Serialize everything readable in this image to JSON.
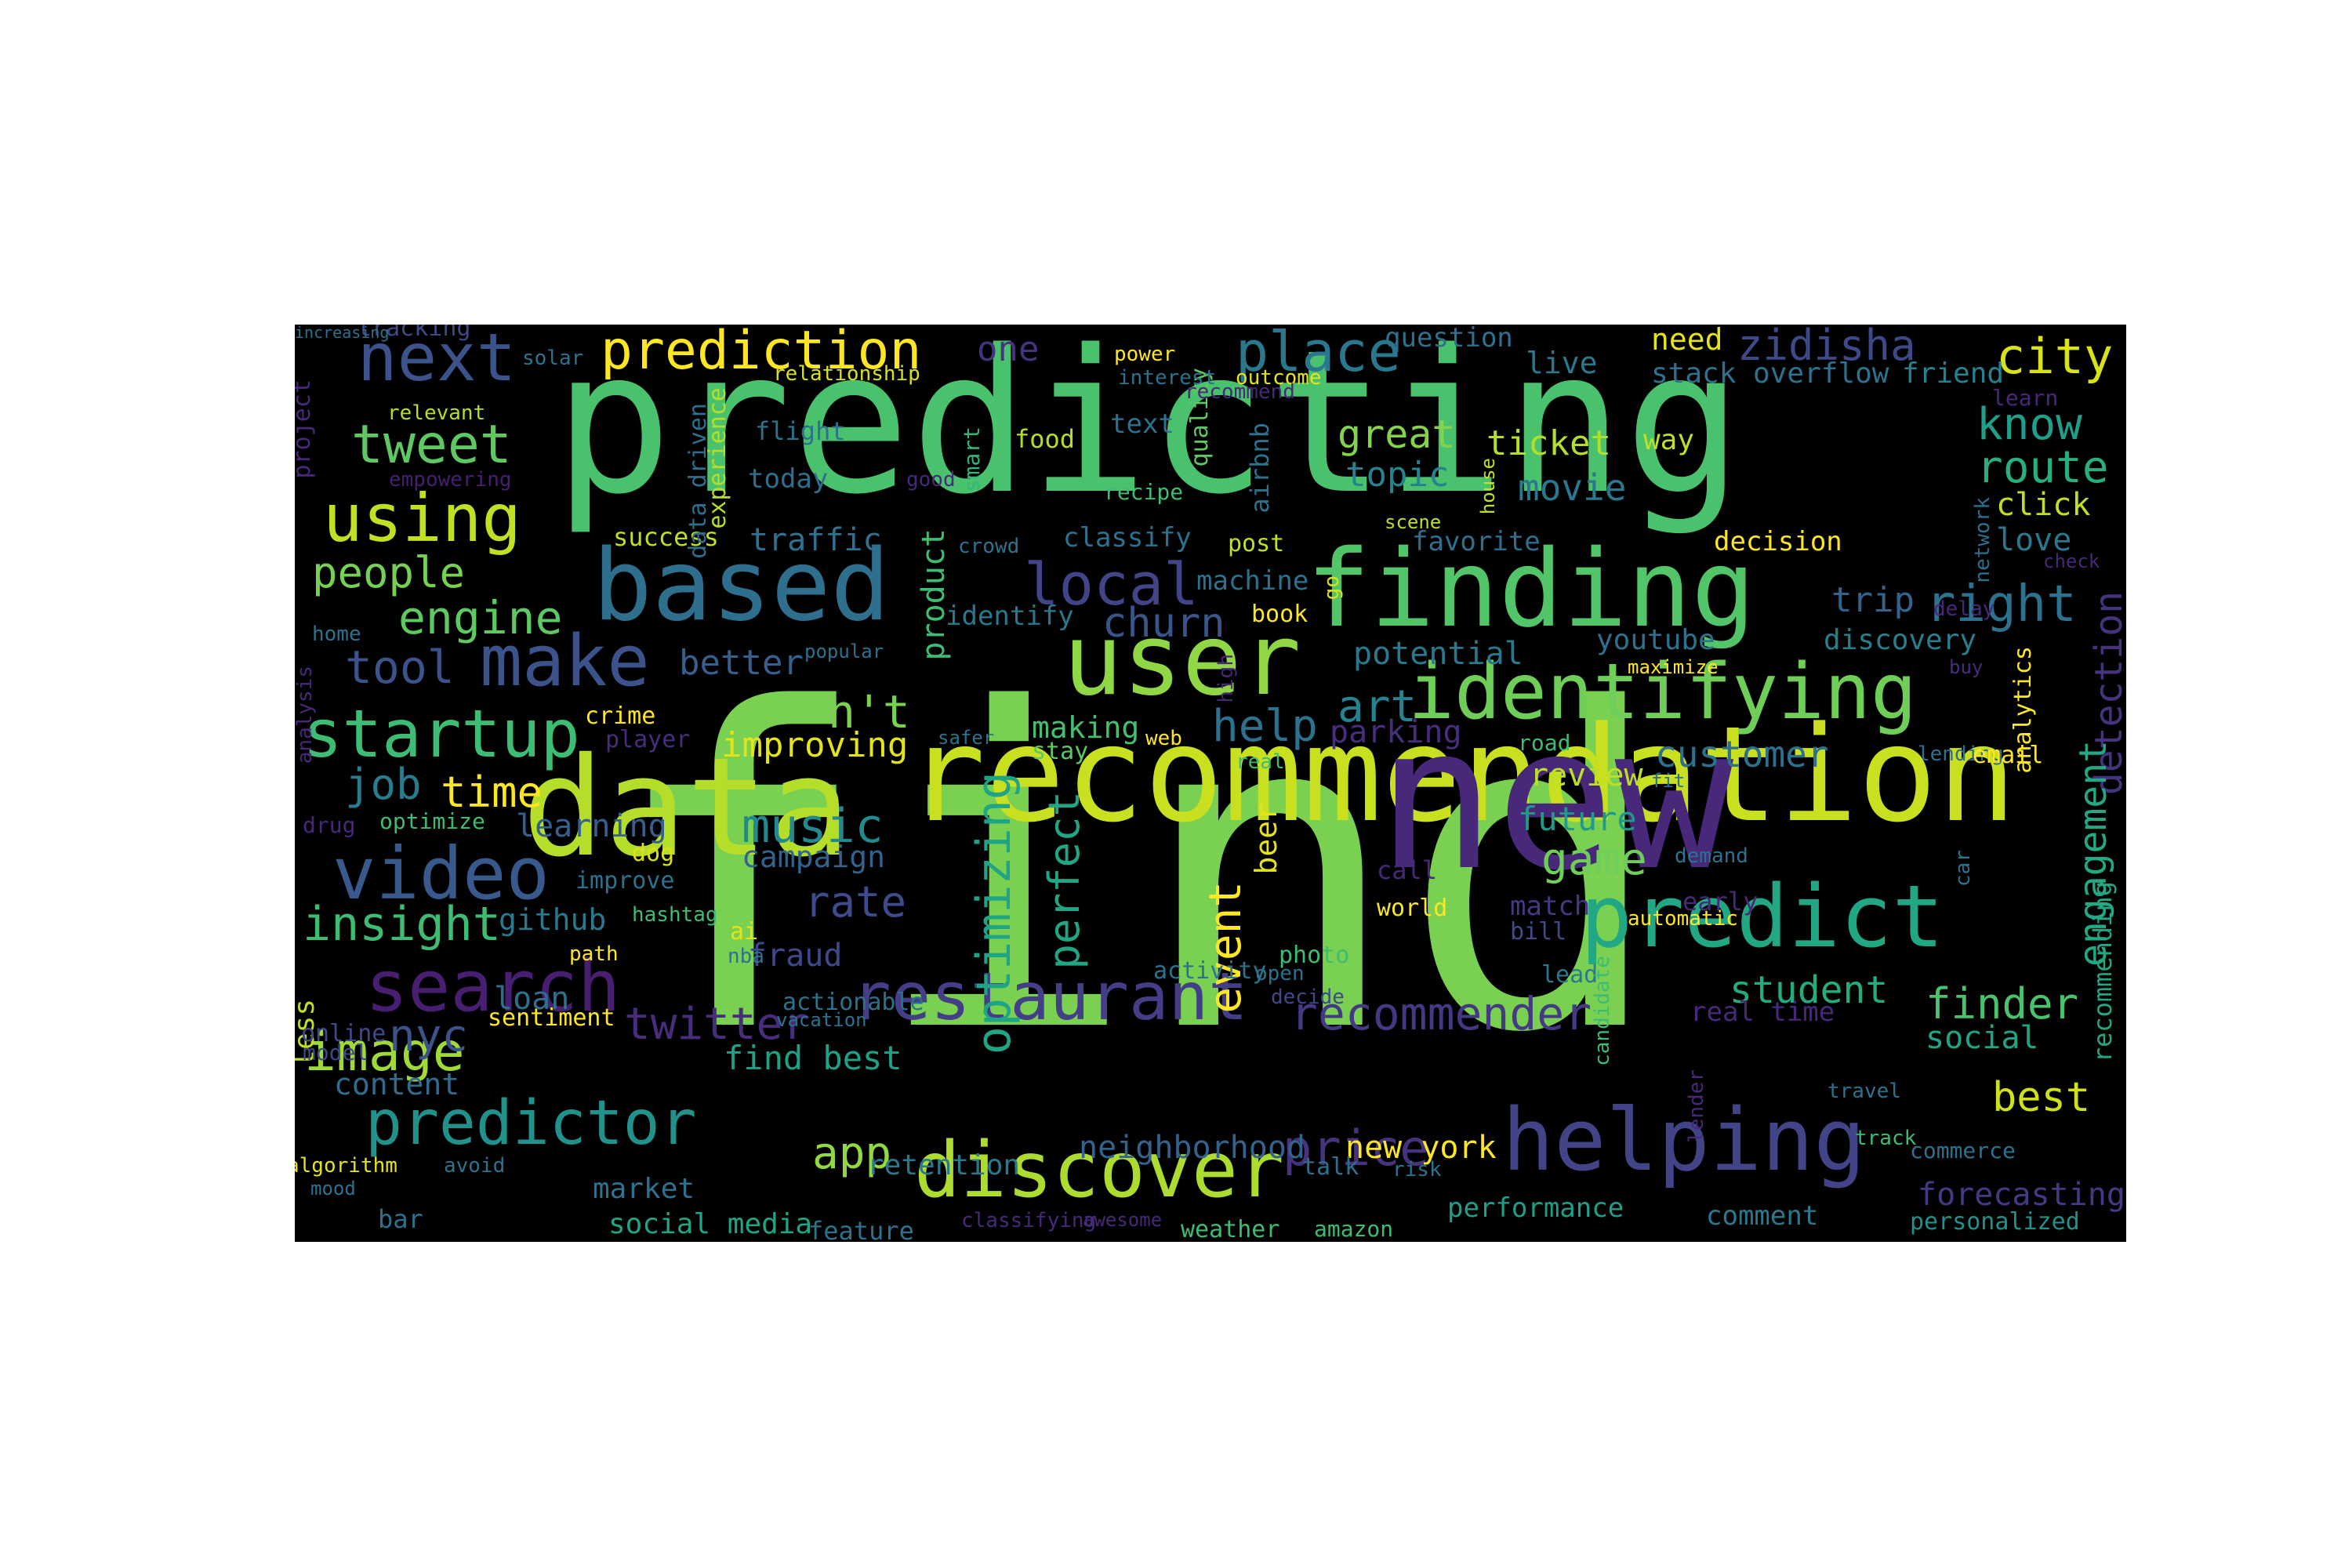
{
  "colors": {
    "background": "#000000",
    "page": "#ffffff",
    "palette": [
      "#440154",
      "#482878",
      "#3e4989",
      "#31688e",
      "#26828e",
      "#1f9e89",
      "#35b779",
      "#6ece58",
      "#b5de2b",
      "#fde725"
    ]
  },
  "words": [
    {
      "text": "find",
      "color": "#7ad151"
    },
    {
      "text": "predicting",
      "color": "#4ac16d"
    },
    {
      "text": "recommendation",
      "color": "#c8e020"
    },
    {
      "text": "new",
      "color": "#482878"
    },
    {
      "text": "data",
      "color": "#b5de2b"
    },
    {
      "text": "finding",
      "color": "#52c569"
    },
    {
      "text": "based",
      "color": "#2e6f8e"
    },
    {
      "text": "user",
      "color": "#8fd744"
    },
    {
      "text": "predict",
      "color": "#22a785"
    },
    {
      "text": "identifying",
      "color": "#6ece58"
    },
    {
      "text": "helping",
      "color": "#414487"
    },
    {
      "text": "discover",
      "color": "#addc30"
    },
    {
      "text": "search",
      "color": "#481f70"
    },
    {
      "text": "restaurant",
      "color": "#433e85"
    },
    {
      "text": "video",
      "color": "#38598c"
    },
    {
      "text": "startup",
      "color": "#3dbc74"
    },
    {
      "text": "make",
      "color": "#3b528b"
    },
    {
      "text": "predictor",
      "color": "#21918c"
    },
    {
      "text": "using",
      "color": "#c2df23"
    },
    {
      "text": "next",
      "color": "#3b528b"
    },
    {
      "text": "prediction",
      "color": "#fde725"
    },
    {
      "text": "tweet",
      "color": "#5ec962"
    },
    {
      "text": "local",
      "color": "#414487"
    },
    {
      "text": "place",
      "color": "#2a788e"
    },
    {
      "text": "optimizing",
      "color": "#20a486"
    },
    {
      "text": "people",
      "color": "#75d054"
    },
    {
      "text": "engine",
      "color": "#5ec962"
    },
    {
      "text": "tool",
      "color": "#3b528b"
    },
    {
      "text": "image",
      "color": "#a0da39"
    },
    {
      "text": "insight",
      "color": "#3fbc73"
    },
    {
      "text": "job",
      "color": "#287c8e"
    },
    {
      "text": "time",
      "color": "#fde725"
    },
    {
      "text": "music",
      "color": "#23898e"
    },
    {
      "text": "churn",
      "color": "#39568c"
    },
    {
      "text": "right",
      "color": "#2c728e"
    },
    {
      "text": "city",
      "color": "#d8e219"
    },
    {
      "text": "know",
      "color": "#1f9e89"
    },
    {
      "text": "route",
      "color": "#29af7f"
    },
    {
      "text": "finder",
      "color": "#4ac16d"
    },
    {
      "text": "best",
      "color": "#d0e11c"
    },
    {
      "text": "price",
      "color": "#46337e"
    },
    {
      "text": "app",
      "color": "#93d741"
    },
    {
      "text": "art",
      "color": "#26828e"
    },
    {
      "text": "help",
      "color": "#2c728e"
    },
    {
      "text": "n't",
      "color": "#7ad151"
    },
    {
      "text": "rate",
      "color": "#3e4a89"
    },
    {
      "text": "perfect",
      "color": "#21a685"
    },
    {
      "text": "event",
      "color": "#fde725"
    },
    {
      "text": "game",
      "color": "#6ece58"
    },
    {
      "text": "nyc",
      "color": "#3b528b"
    },
    {
      "text": "twitter",
      "color": "#472d7b"
    },
    {
      "text": "recommender",
      "color": "#443a83"
    },
    {
      "text": "student",
      "color": "#25ab82"
    },
    {
      "text": "customer",
      "color": "#2d708e"
    },
    {
      "text": "zidisha",
      "color": "#3e4989"
    },
    {
      "text": "detection",
      "color": "#46337e"
    },
    {
      "text": "engagement",
      "color": "#22a884"
    },
    {
      "text": "great",
      "color": "#84d44b"
    },
    {
      "text": "ticket",
      "color": "#b5de2b"
    },
    {
      "text": "movie",
      "color": "#2a788e"
    },
    {
      "text": "topic",
      "color": "#26828e"
    },
    {
      "text": "trip",
      "color": "#33638d"
    },
    {
      "text": "content",
      "color": "#2f6c8e"
    },
    {
      "text": "improving",
      "color": "#e5e419"
    },
    {
      "text": "better",
      "color": "#355f8d"
    },
    {
      "text": "traffic",
      "color": "#2c728e"
    },
    {
      "text": "learning",
      "color": "#355f8d"
    },
    {
      "text": "campaign",
      "color": "#33638d"
    },
    {
      "text": "fraud",
      "color": "#3e4989"
    },
    {
      "text": "github",
      "color": "#2a788e"
    },
    {
      "text": "loan",
      "color": "#2d708e"
    },
    {
      "text": "find best",
      "color": "#1fa188"
    },
    {
      "text": "social media",
      "color": "#20a486"
    },
    {
      "text": "neighborhood",
      "color": "#33638d"
    },
    {
      "text": "new york",
      "color": "#fde725"
    },
    {
      "text": "stack overflow",
      "color": "#2c728e"
    },
    {
      "text": "friend",
      "color": "#26828e"
    },
    {
      "text": "need",
      "color": "#e5e419"
    },
    {
      "text": "live",
      "color": "#2a788e"
    },
    {
      "text": "way",
      "color": "#c2df23"
    },
    {
      "text": "click",
      "color": "#bddf26"
    },
    {
      "text": "love",
      "color": "#2a788e"
    },
    {
      "text": "forecasting",
      "color": "#443983"
    },
    {
      "text": "social",
      "color": "#20a486"
    },
    {
      "text": "potential",
      "color": "#2a788e"
    },
    {
      "text": "parking",
      "color": "#472d7b"
    },
    {
      "text": "review",
      "color": "#bddf26"
    },
    {
      "text": "future",
      "color": "#1f9a8a"
    },
    {
      "text": "discovery",
      "color": "#277f8e"
    },
    {
      "text": "youtube",
      "color": "#2c728e"
    },
    {
      "text": "decision",
      "color": "#fde725"
    },
    {
      "text": "favorite",
      "color": "#2e6e8e"
    },
    {
      "text": "one",
      "color": "#46337e"
    },
    {
      "text": "question",
      "color": "#2c728e"
    },
    {
      "text": "making",
      "color": "#44bf70"
    },
    {
      "text": "comment",
      "color": "#2a788e"
    },
    {
      "text": "performance",
      "color": "#1f9e89"
    },
    {
      "text": "weather",
      "color": "#3fbc73"
    },
    {
      "text": "feature",
      "color": "#2c728e"
    },
    {
      "text": "market",
      "color": "#2c728e"
    },
    {
      "text": "retention",
      "color": "#2a788e"
    },
    {
      "text": "less",
      "color": "#bddf26"
    },
    {
      "text": "online",
      "color": "#3e4a89"
    },
    {
      "text": "model",
      "color": "#3e4a89"
    },
    {
      "text": "product",
      "color": "#3fbc73"
    },
    {
      "text": "identify",
      "color": "#2a788e"
    },
    {
      "text": "real time",
      "color": "#482878"
    },
    {
      "text": "recommending",
      "color": "#22a785"
    },
    {
      "text": "personalized",
      "color": "#21918c"
    },
    {
      "text": "beer",
      "color": "#e5e419"
    },
    {
      "text": "match",
      "color": "#443983"
    },
    {
      "text": "bill",
      "color": "#3e4a89"
    },
    {
      "text": "lead",
      "color": "#2a788e"
    },
    {
      "text": "text",
      "color": "#2c728e"
    },
    {
      "text": "food",
      "color": "#b5de2b"
    },
    {
      "text": "flight",
      "color": "#2c728e"
    },
    {
      "text": "today",
      "color": "#2d708e"
    },
    {
      "text": "success",
      "color": "#bddf26"
    },
    {
      "text": "airbnb",
      "color": "#2c728e"
    },
    {
      "text": "quality",
      "color": "#5ec962"
    },
    {
      "text": "machine",
      "color": "#2c728e"
    },
    {
      "text": "book",
      "color": "#fde725"
    },
    {
      "text": "stay",
      "color": "#5ec962"
    },
    {
      "text": "crime",
      "color": "#fde725"
    },
    {
      "text": "player",
      "color": "#472d7b"
    },
    {
      "text": "dog",
      "color": "#d8e219"
    },
    {
      "text": "improve",
      "color": "#2c728e"
    },
    {
      "text": "optimize",
      "color": "#3fbc73"
    },
    {
      "text": "drug",
      "color": "#482878"
    },
    {
      "text": "project",
      "color": "#482878"
    },
    {
      "text": "relevant",
      "color": "#b5de2b"
    },
    {
      "text": "empowering",
      "color": "#481f70"
    },
    {
      "text": "tracking",
      "color": "#3e4989"
    },
    {
      "text": "solar",
      "color": "#2c728e"
    },
    {
      "text": "relationship",
      "color": "#d8e219"
    },
    {
      "text": "experience",
      "color": "#b5de2b"
    },
    {
      "text": "data driven",
      "color": "#2d708e"
    },
    {
      "text": "smart",
      "color": "#35b779"
    },
    {
      "text": "good",
      "color": "#482878"
    },
    {
      "text": "power",
      "color": "#fde725"
    },
    {
      "text": "interest",
      "color": "#2c728e"
    },
    {
      "text": "outcome",
      "color": "#e5e419"
    },
    {
      "text": "recommend",
      "color": "#482878"
    },
    {
      "text": "recipe",
      "color": "#3fbc73"
    },
    {
      "text": "classify",
      "color": "#2c728e"
    },
    {
      "text": "post",
      "color": "#c2df23"
    },
    {
      "text": "crowd",
      "color": "#2c728e"
    },
    {
      "text": "scene",
      "color": "#bddf26"
    },
    {
      "text": "house",
      "color": "#c2df23"
    },
    {
      "text": "learn",
      "color": "#482878"
    },
    {
      "text": "network",
      "color": "#2d708e"
    },
    {
      "text": "check",
      "color": "#482878"
    },
    {
      "text": "delay",
      "color": "#482878"
    },
    {
      "text": "go",
      "color": "#d8e219"
    },
    {
      "text": "home",
      "color": "#2c728e"
    },
    {
      "text": "popular",
      "color": "#2c728e"
    },
    {
      "text": "analysis",
      "color": "#482878"
    },
    {
      "text": "high",
      "color": "#482878"
    },
    {
      "text": "maximize",
      "color": "#fde725"
    },
    {
      "text": "analytics",
      "color": "#fde725"
    },
    {
      "text": "buy",
      "color": "#472d7b"
    },
    {
      "text": "safer",
      "color": "#2c728e"
    },
    {
      "text": "web",
      "color": "#fde725"
    },
    {
      "text": "real",
      "color": "#3fbc73"
    },
    {
      "text": "road",
      "color": "#3fbc73"
    },
    {
      "text": "lending",
      "color": "#2c728e"
    },
    {
      "text": "email",
      "color": "#fde725"
    },
    {
      "text": "fit",
      "color": "#2c728e"
    },
    {
      "text": "call",
      "color": "#482878"
    },
    {
      "text": "world",
      "color": "#fde725"
    },
    {
      "text": "demand",
      "color": "#2c728e"
    },
    {
      "text": "car",
      "color": "#2c728e"
    },
    {
      "text": "early",
      "color": "#482878"
    },
    {
      "text": "automatic",
      "color": "#fde725"
    },
    {
      "text": "ai",
      "color": "#e5e419"
    },
    {
      "text": "nba",
      "color": "#2c728e"
    },
    {
      "text": "hashtag",
      "color": "#3fbc73"
    },
    {
      "text": "path",
      "color": "#fde725"
    },
    {
      "text": "activity",
      "color": "#2c728e"
    },
    {
      "text": "photo",
      "color": "#3fbc73"
    },
    {
      "text": "open",
      "color": "#2c728e"
    },
    {
      "text": "decide",
      "color": "#3e4989"
    },
    {
      "text": "actionable",
      "color": "#2c728e"
    },
    {
      "text": "vacation",
      "color": "#2c728e"
    },
    {
      "text": "sentiment",
      "color": "#fde725"
    },
    {
      "text": "candidate",
      "color": "#3fbc73"
    },
    {
      "text": "lender",
      "color": "#482878"
    },
    {
      "text": "travel",
      "color": "#2c728e"
    },
    {
      "text": "track",
      "color": "#3fbc73"
    },
    {
      "text": "commerce",
      "color": "#2c728e"
    },
    {
      "text": "talk",
      "color": "#2c728e"
    },
    {
      "text": "risk",
      "color": "#2c728e"
    },
    {
      "text": "algorithm",
      "color": "#e5e419"
    },
    {
      "text": "mood",
      "color": "#2c728e"
    },
    {
      "text": "avoid",
      "color": "#2c728e"
    },
    {
      "text": "bar",
      "color": "#2c728e"
    },
    {
      "text": "classifying",
      "color": "#482878"
    },
    {
      "text": "awesome",
      "color": "#482878"
    },
    {
      "text": "amazon",
      "color": "#3fbc73"
    },
    {
      "text": "increasing",
      "color": "#2c728e"
    }
  ]
}
